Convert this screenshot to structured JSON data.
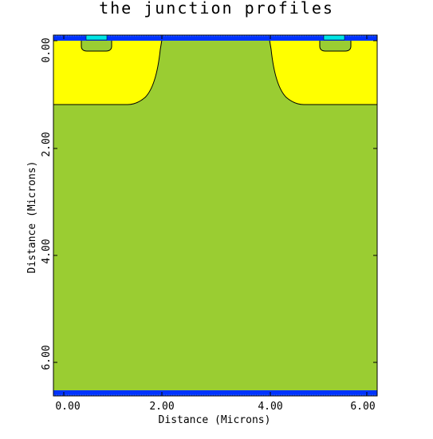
{
  "title": "the junction profiles",
  "x_axis": {
    "label": "Distance (Microns)",
    "ticks": [
      "0.00",
      "2.00",
      "4.00",
      "6.00"
    ],
    "tick_values": [
      0,
      2,
      4,
      6
    ],
    "range": [
      -0.2,
      6.0
    ]
  },
  "y_axis": {
    "label": "Distance (Microns)",
    "ticks": [
      "0.00",
      "2.00",
      "4.00",
      "6.00"
    ],
    "tick_values": [
      0,
      2,
      4,
      6
    ],
    "range": [
      -0.07,
      6.7
    ],
    "inverted": true
  },
  "colors": {
    "substrate": "#9acd32",
    "junction_region": "#ffff00",
    "contact": "#00e5e5",
    "oxide": "#0033ff",
    "outline": "#000000",
    "background": "#ffffff"
  }
}
